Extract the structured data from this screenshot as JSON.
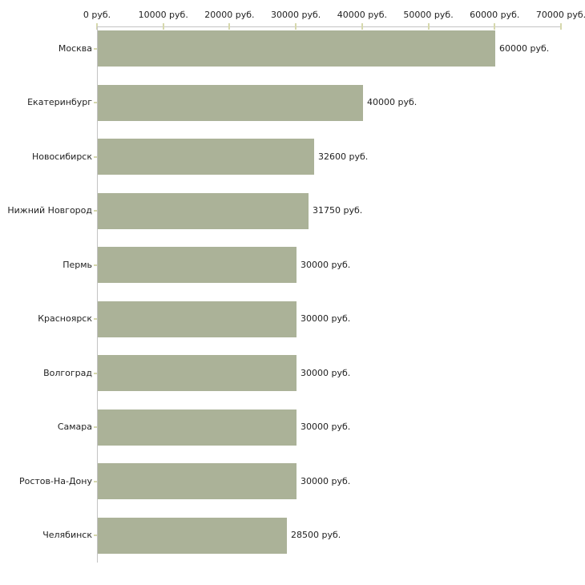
{
  "chart_data": {
    "type": "bar",
    "orientation": "horizontal",
    "title": "",
    "xlabel": "",
    "ylabel": "",
    "unit_suffix": " руб.",
    "categories": [
      "Москва",
      "Екатеринбург",
      "Новосибирск",
      "Нижний Новгород",
      "Пермь",
      "Красноярск",
      "Волгоград",
      "Самара",
      "Ростов-На-Дону",
      "Челябинск"
    ],
    "values": [
      60000,
      40000,
      32600,
      31750,
      30000,
      30000,
      30000,
      30000,
      30000,
      28500
    ],
    "value_labels": [
      "60000 руб.",
      "40000 руб.",
      "32600 руб.",
      "31750 руб.",
      "30000 руб.",
      "30000 руб.",
      "30000 руб.",
      "30000 руб.",
      "30000 руб.",
      "28500 руб."
    ],
    "x_ticks": [
      0,
      10000,
      20000,
      30000,
      40000,
      50000,
      60000,
      70000
    ],
    "x_tick_labels": [
      "0 руб.",
      "10000 руб.",
      "20000 руб.",
      "30000 руб.",
      "40000 руб.",
      "50000 руб.",
      "60000 руб.",
      "70000 руб."
    ],
    "xlim": [
      0,
      70000
    ],
    "grid": false,
    "legend": false,
    "axis_position": "top",
    "colors": {
      "bar": "#abb298",
      "axis_line": "#c3c3c3",
      "tick_mark": "#d6d8ad",
      "text": "#222222",
      "background": "#ffffff"
    }
  }
}
